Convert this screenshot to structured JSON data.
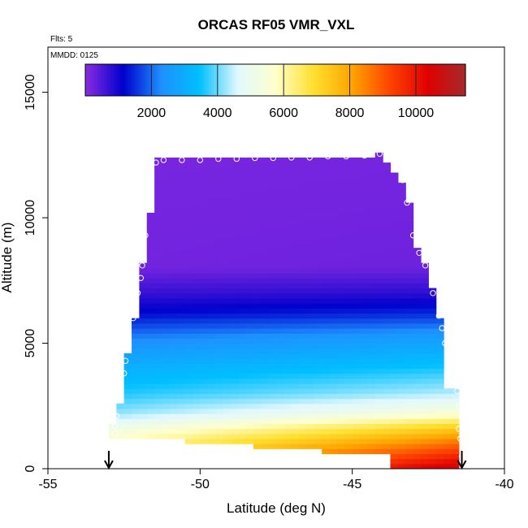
{
  "chart_data": {
    "type": "heatmap",
    "title": "ORCAS RF05 VMR_VXL",
    "annotations": {
      "flights": "Flts: 5",
      "mmdd": "MMDD: 0125"
    },
    "xlabel": "Latitude (deg N)",
    "ylabel": "Altitude (m)",
    "xlim": [
      -55,
      -40
    ],
    "ylim": [
      0,
      16800
    ],
    "x_ticks": [
      -55,
      -50,
      -45,
      -40
    ],
    "x_tick_labels": [
      "-55",
      "-50",
      "-45",
      "-40"
    ],
    "y_ticks": [
      0,
      5000,
      10000,
      15000
    ],
    "y_tick_labels": [
      "0",
      "5000",
      "10000",
      "15000"
    ],
    "colorbar": {
      "range": [
        0,
        11500
      ],
      "ticks": [
        2000,
        4000,
        6000,
        8000,
        10000
      ],
      "tick_labels": [
        "2000",
        "4000",
        "6000",
        "8000",
        "10000"
      ],
      "colors": [
        "#8A2BE2",
        "#0000CD",
        "#1E90FF",
        "#00BFFF",
        "#E0F8FF",
        "#FFFFCC",
        "#FFE030",
        "#FFA500",
        "#FF4500",
        "#E00000",
        "#A52A2A"
      ]
    },
    "value_model": {
      "altitude_nodes": [
        0,
        1000,
        1600,
        2200,
        3000,
        4000,
        5200,
        6200,
        7000,
        8000,
        16800
      ],
      "values_at_south_edge": [
        7200,
        6000,
        5200,
        4200,
        3600,
        3100,
        2200,
        1200,
        700,
        200,
        100
      ],
      "values_at_north_edge": [
        10800,
        8800,
        7400,
        5600,
        4400,
        3600,
        2700,
        1500,
        800,
        250,
        100
      ],
      "south_edge_latitude": -52.9,
      "north_edge_latitude": -41.4
    },
    "cell_size": {
      "latitude": 0.25,
      "altitude": 200
    },
    "profile": [
      [
        -52.9,
        1400
      ],
      [
        -52.8,
        2600
      ],
      [
        -52.4,
        2600
      ],
      [
        -52.4,
        4600
      ],
      [
        -52.2,
        4600
      ],
      [
        -52.2,
        6000
      ],
      [
        -52.0,
        6000
      ],
      [
        -52.0,
        8200
      ],
      [
        -51.7,
        8200
      ],
      [
        -51.7,
        10200
      ],
      [
        -51.6,
        10200
      ],
      [
        -51.6,
        11600
      ],
      [
        -51.5,
        11600
      ],
      [
        -51.5,
        12500
      ],
      [
        -44.2,
        12500
      ],
      [
        -44.2,
        12700
      ],
      [
        -44.0,
        12700
      ],
      [
        -44.0,
        12300
      ],
      [
        -43.7,
        12300
      ],
      [
        -43.7,
        11900
      ],
      [
        -43.5,
        11900
      ],
      [
        -43.5,
        11400
      ],
      [
        -43.3,
        11400
      ],
      [
        -43.3,
        10700
      ],
      [
        -43.1,
        10700
      ],
      [
        -43.1,
        9600
      ],
      [
        -42.9,
        9600
      ],
      [
        -42.9,
        8800
      ],
      [
        -42.7,
        8800
      ],
      [
        -42.7,
        8300
      ],
      [
        -42.5,
        8300
      ],
      [
        -42.5,
        7200
      ],
      [
        -42.2,
        7200
      ],
      [
        -42.2,
        6100
      ],
      [
        -42.0,
        6100
      ],
      [
        -42.0,
        4300
      ],
      [
        -41.9,
        4300
      ],
      [
        -41.9,
        3200
      ],
      [
        -41.4,
        3200
      ],
      [
        -41.4,
        1000
      ],
      [
        -41.4,
        0
      ],
      [
        -43.7,
        0
      ],
      [
        -43.7,
        600
      ],
      [
        -45.9,
        600
      ],
      [
        -45.9,
        800
      ],
      [
        -48.2,
        800
      ],
      [
        -48.2,
        1000
      ],
      [
        -50.4,
        1000
      ],
      [
        -50.4,
        1200
      ],
      [
        -52.9,
        1200
      ]
    ],
    "markers": [
      [
        -52.8,
        1400
      ],
      [
        -52.8,
        1700
      ],
      [
        -52.75,
        2100
      ],
      [
        -52.6,
        3000
      ],
      [
        -52.5,
        3800
      ],
      [
        -52.45,
        4300
      ],
      [
        -52.35,
        5000
      ],
      [
        -52.2,
        6000
      ],
      [
        -52.05,
        7000
      ],
      [
        -51.95,
        7600
      ],
      [
        -51.9,
        8100
      ],
      [
        -51.8,
        9300
      ],
      [
        -51.7,
        10800
      ],
      [
        -51.65,
        11700
      ],
      [
        -51.45,
        12200
      ],
      [
        -51.2,
        12300
      ],
      [
        -50.6,
        12300
      ],
      [
        -50.0,
        12300
      ],
      [
        -49.4,
        12350
      ],
      [
        -48.8,
        12350
      ],
      [
        -48.2,
        12380
      ],
      [
        -47.6,
        12380
      ],
      [
        -47.0,
        12400
      ],
      [
        -46.4,
        12400
      ],
      [
        -45.8,
        12450
      ],
      [
        -45.2,
        12450
      ],
      [
        -44.6,
        12480
      ],
      [
        -44.1,
        12550
      ],
      [
        -43.5,
        12200
      ],
      [
        -43.35,
        11500
      ],
      [
        -43.2,
        10600
      ],
      [
        -43.0,
        9300
      ],
      [
        -42.8,
        8600
      ],
      [
        -42.6,
        8100
      ],
      [
        -42.35,
        7000
      ],
      [
        -42.15,
        6100
      ],
      [
        -42.05,
        5600
      ],
      [
        -41.95,
        5000
      ],
      [
        -41.85,
        4100
      ],
      [
        -41.55,
        3100
      ],
      [
        -41.5,
        2500
      ],
      [
        -41.5,
        1600
      ],
      [
        -41.45,
        1200
      ],
      [
        -41.4,
        500
      ],
      [
        -41.35,
        300
      ]
    ],
    "arrows": [
      -53.0,
      -41.4
    ]
  }
}
